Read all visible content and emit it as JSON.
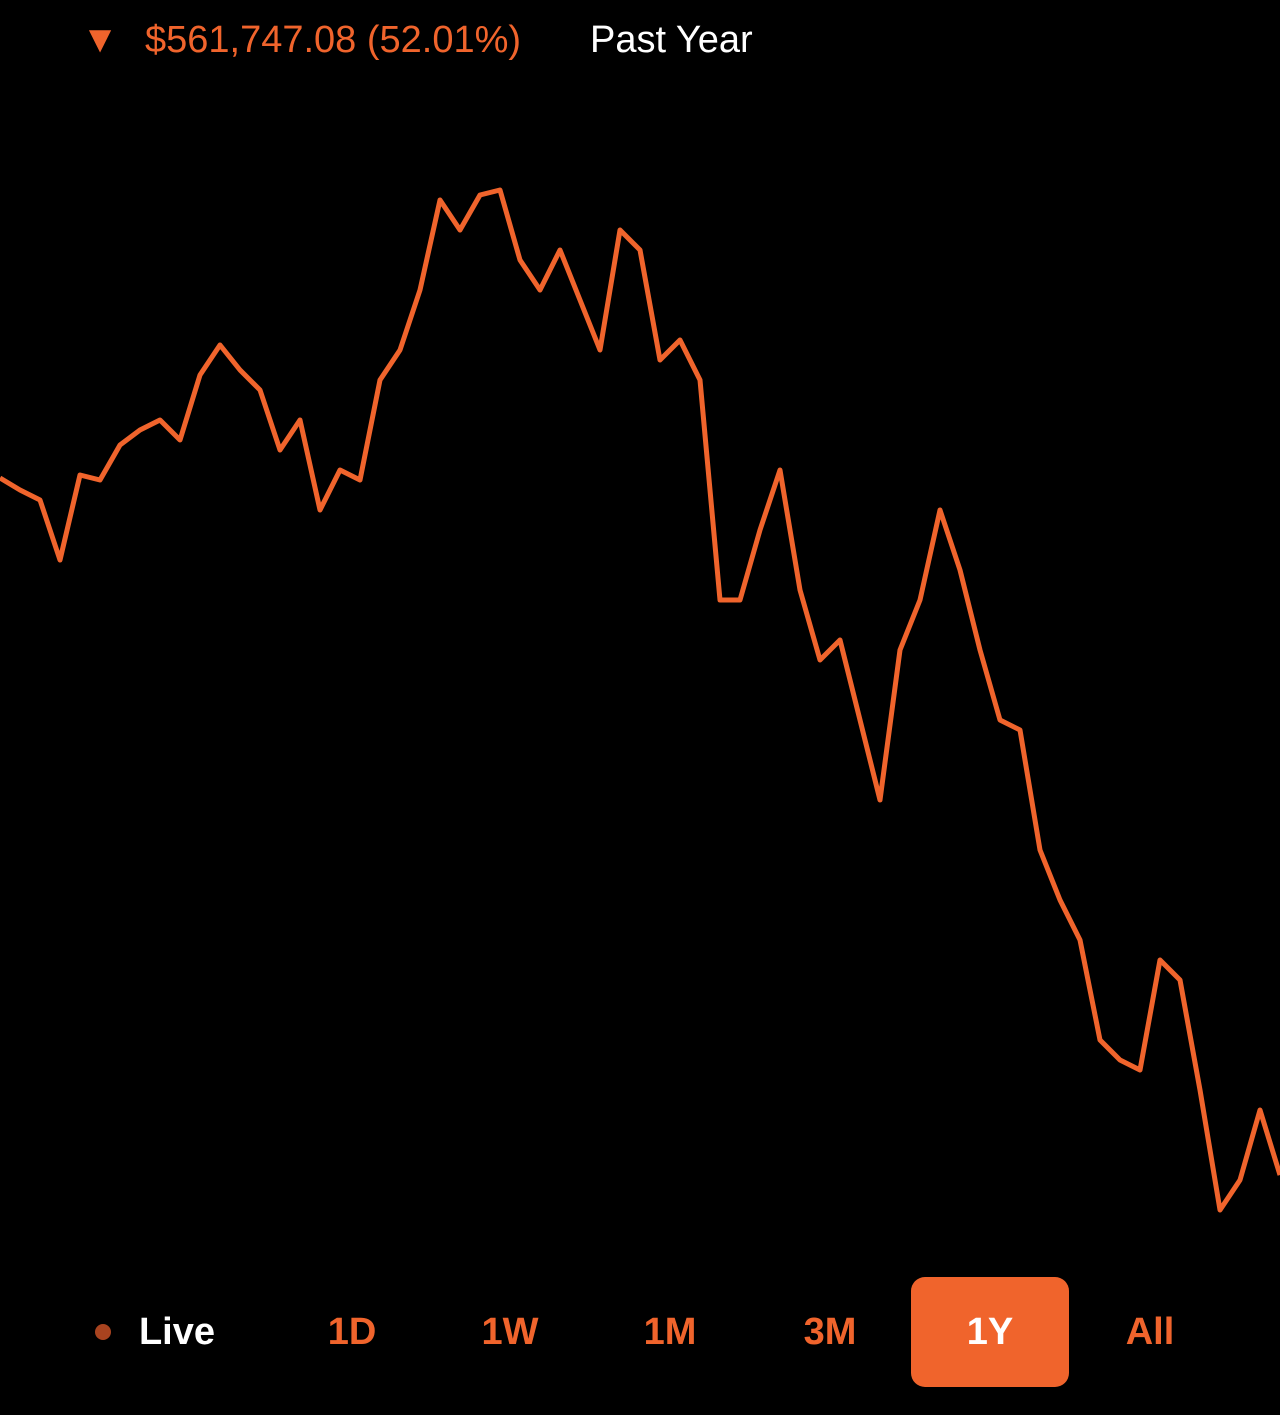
{
  "header": {
    "arrow": "▼",
    "change": "$561,747.08 (52.01%)",
    "period": "Past Year"
  },
  "chart_data": {
    "type": "line",
    "color": "#f0642c",
    "values": [
      76.2,
      75,
      74,
      68,
      76.5,
      76,
      79.5,
      81,
      82,
      80,
      86.5,
      89.5,
      87,
      85,
      79,
      82,
      73,
      77,
      76,
      86,
      89,
      95,
      104,
      101,
      104.5,
      105,
      98,
      95,
      99,
      94,
      89,
      101,
      99,
      88,
      90,
      86,
      64,
      64,
      71,
      77,
      65,
      58,
      60,
      52,
      44,
      59,
      64,
      73,
      67,
      59,
      52,
      51,
      39,
      34,
      30,
      20,
      18,
      17,
      28,
      26,
      15,
      3,
      6,
      13,
      6.5
    ],
    "ylim": [
      0,
      124
    ]
  },
  "ranges": {
    "live": "Live",
    "buttons": [
      "1D",
      "1W",
      "1M",
      "3M",
      "1Y",
      "All"
    ],
    "selected": 4
  }
}
